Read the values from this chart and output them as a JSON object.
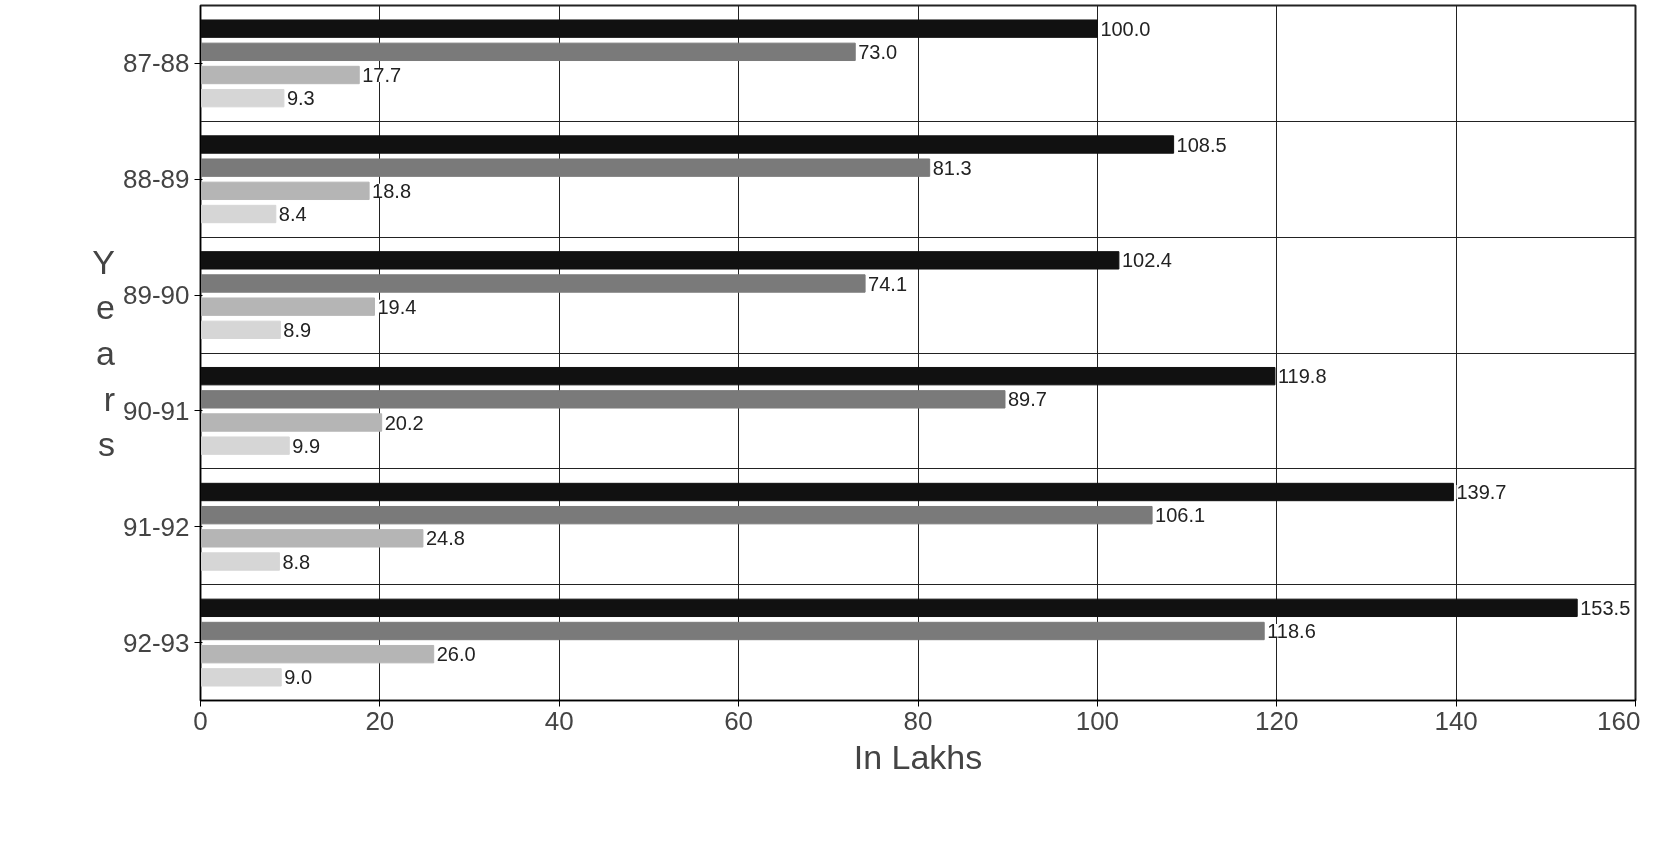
{
  "chart_data": {
    "type": "bar",
    "orientation": "horizontal",
    "xlabel": "In Lakhs",
    "ylabel": "Years",
    "categories": [
      "87-88",
      "88-89",
      "89-90",
      "90-91",
      "91-92",
      "92-93"
    ],
    "series": [
      {
        "color": "#111111",
        "values": [
          100,
          108.5,
          102.4,
          119.8,
          139.7,
          153.5
        ],
        "value_labels": [
          "100.0",
          "108.5",
          "102.4",
          "119.8",
          "139.7",
          "153.5"
        ]
      },
      {
        "color": "#7a7a7a",
        "values": [
          73,
          81.3,
          74.1,
          89.7,
          106.1,
          118.6
        ],
        "value_labels": [
          "73.0",
          "81.3",
          "74.1",
          "89.7",
          "106.1",
          "118.6"
        ]
      },
      {
        "color": "#b5b5b5",
        "values": [
          17.7,
          18.8,
          19.4,
          20.2,
          24.8,
          26
        ],
        "value_labels": [
          "17.7",
          "18.8",
          "19.4",
          "20.2",
          "24.8",
          "26.0"
        ]
      },
      {
        "color": "#d6d6d6",
        "values": [
          9.3,
          8.4,
          8.9,
          9.9,
          8.8,
          9
        ],
        "value_labels": [
          "9.3",
          "8.4",
          "8.9",
          "9.9",
          "8.8",
          "9.0"
        ]
      }
    ],
    "xlim": [
      0,
      160
    ],
    "xticks": [
      0,
      20,
      40,
      60,
      80,
      100,
      120,
      140,
      160
    ],
    "grid": true
  }
}
